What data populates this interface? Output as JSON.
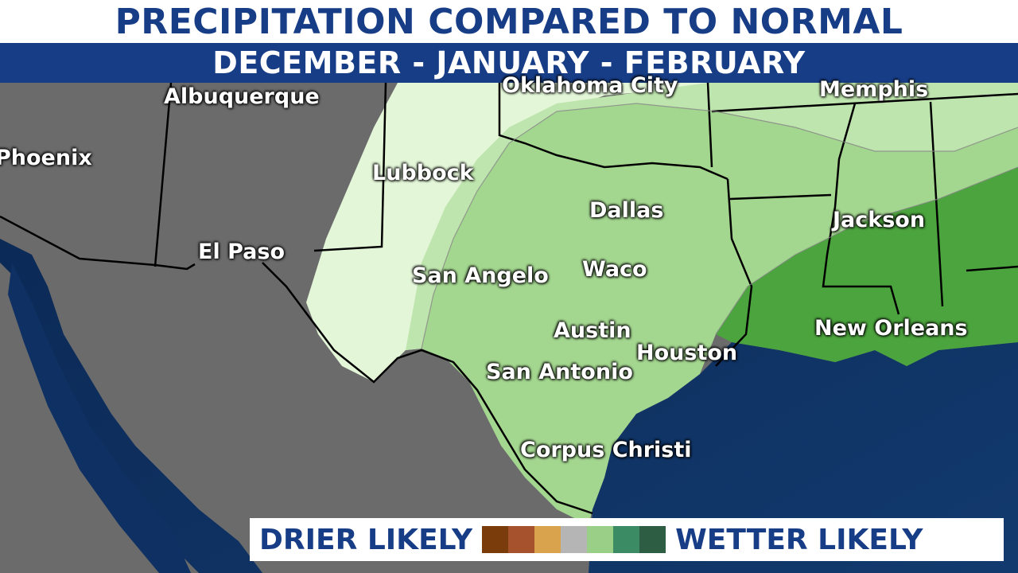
{
  "title": "PRECIPITATION COMPARED TO NORMAL",
  "subtitle": "DECEMBER - JANUARY - FEBRUARY",
  "cities": [
    {
      "name": "Albuquerque"
    },
    {
      "name": "Phoenix"
    },
    {
      "name": "Lubbock"
    },
    {
      "name": "El Paso"
    },
    {
      "name": "Oklahoma City"
    },
    {
      "name": "Memphis"
    },
    {
      "name": "Dallas"
    },
    {
      "name": "Jackson"
    },
    {
      "name": "San Angelo"
    },
    {
      "name": "Waco"
    },
    {
      "name": "Austin"
    },
    {
      "name": "Houston"
    },
    {
      "name": "New Orleans"
    },
    {
      "name": "San Antonio"
    },
    {
      "name": "Corpus Christi"
    }
  ],
  "legend": {
    "left_label": "DRIER LIKELY",
    "right_label": "WETTER LIKELY",
    "colors": [
      "#7a3c0a",
      "#a6522c",
      "#d9a34e",
      "#b5b5b5",
      "#99cf86",
      "#3b8b64",
      "#2d5e44"
    ]
  },
  "colors": {
    "ocean": "#0d2b55",
    "land_no_data": "#6b6b6b",
    "header_blue": "#173d86",
    "zone_lightest": "#e3f6d8",
    "zone_light": "#bfe5ae",
    "zone_medium": "#a3d68f",
    "zone_wet": "#4ca43e"
  }
}
